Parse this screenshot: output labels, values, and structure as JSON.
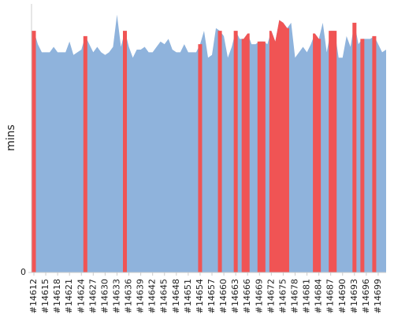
{
  "chart_data": {
    "type": "area",
    "ylabel": "mins",
    "categories": [
      "#14612",
      null,
      null,
      "#14615",
      null,
      null,
      "#14618",
      null,
      null,
      "#14621",
      null,
      null,
      "#14624",
      null,
      null,
      "#14627",
      null,
      null,
      "#14630",
      null,
      null,
      "#14633",
      null,
      null,
      "#14636",
      null,
      null,
      "#14639",
      null,
      null,
      "#14642",
      null,
      null,
      "#14645",
      null,
      null,
      "#14648",
      null,
      null,
      "#14651",
      null,
      null,
      "#14654",
      null,
      null,
      "#14657",
      null,
      null,
      "#14660",
      null,
      null,
      "#14663",
      null,
      null,
      "#14666",
      null,
      null,
      "#14669",
      null,
      null,
      "#14672",
      null,
      null,
      "#14675",
      null,
      null,
      "#14678",
      null,
      null,
      "#14681",
      null,
      null,
      "#14684",
      null,
      null,
      "#14687",
      null,
      null,
      "#14690",
      null,
      null,
      "#14693",
      null,
      null,
      "#14696",
      null,
      null,
      "#14699",
      null,
      null
    ],
    "series": [
      {
        "color": "#8fb3dc",
        "values": [
          90,
          85,
          82,
          82,
          82,
          84,
          82,
          82,
          82,
          86,
          81,
          82,
          83,
          88,
          85,
          82,
          84,
          82,
          81,
          82,
          84,
          96,
          84,
          90,
          84,
          80,
          83,
          83,
          84,
          82,
          82,
          84,
          86,
          85,
          87,
          83,
          82,
          82,
          85,
          82,
          82,
          82,
          85,
          90,
          80,
          81,
          91,
          90,
          88,
          80,
          84,
          90,
          87,
          87,
          89,
          85,
          85,
          86,
          86,
          85,
          90,
          86,
          94,
          93,
          91,
          93,
          80,
          82,
          84,
          82,
          85,
          89,
          87,
          93,
          82,
          90,
          90,
          80,
          80,
          88,
          84,
          93,
          85,
          87,
          87,
          87,
          88,
          85,
          82,
          83
        ]
      },
      {
        "color": "#f05454",
        "values": [
          90,
          null,
          null,
          null,
          null,
          null,
          null,
          null,
          null,
          null,
          null,
          null,
          null,
          88,
          null,
          null,
          null,
          null,
          null,
          null,
          null,
          null,
          null,
          90,
          null,
          null,
          null,
          null,
          null,
          null,
          null,
          null,
          null,
          null,
          null,
          null,
          null,
          null,
          null,
          null,
          null,
          null,
          85,
          null,
          null,
          null,
          null,
          90,
          null,
          null,
          null,
          90,
          null,
          87,
          89,
          null,
          null,
          86,
          86,
          null,
          90,
          86,
          94,
          93,
          91,
          null,
          null,
          null,
          null,
          null,
          null,
          89,
          87,
          null,
          null,
          90,
          90,
          null,
          null,
          null,
          null,
          93,
          null,
          87,
          null,
          null,
          88,
          null,
          null,
          null
        ]
      }
    ],
    "ylim": [
      0,
      100
    ],
    "yticks": [
      0
    ]
  }
}
